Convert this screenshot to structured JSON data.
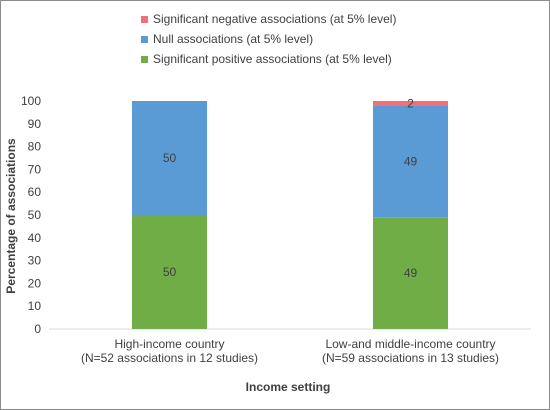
{
  "chart_data": {
    "type": "bar",
    "stacked": true,
    "categories": [
      [
        "High-income country",
        "(N=52 associations in 12 studies)"
      ],
      [
        "Low-and middle-income country",
        "(N=59 associations in 13 studies)"
      ]
    ],
    "series": [
      {
        "name": "Significant positive associations (at 5% level)",
        "values": [
          50,
          49
        ],
        "labels": [
          "50",
          "49"
        ],
        "color": "#70ad47"
      },
      {
        "name": "Null associations (at 5% level)",
        "values": [
          50,
          49
        ],
        "labels": [
          "50",
          "49"
        ],
        "color": "#5b9bd5"
      },
      {
        "name": "Significant negative associations (at 5% level)",
        "values": [
          0,
          2
        ],
        "labels": [
          "",
          "2"
        ],
        "color": "#ee7177"
      }
    ],
    "legend_order": [
      2,
      1,
      0
    ],
    "legend_position": "top",
    "xlabel": "Income setting",
    "ylabel": "Percentage of associations",
    "ylim": [
      0,
      100
    ],
    "yticks": [
      0,
      10,
      20,
      30,
      40,
      50,
      60,
      70,
      80,
      90,
      100
    ],
    "grid": false
  }
}
